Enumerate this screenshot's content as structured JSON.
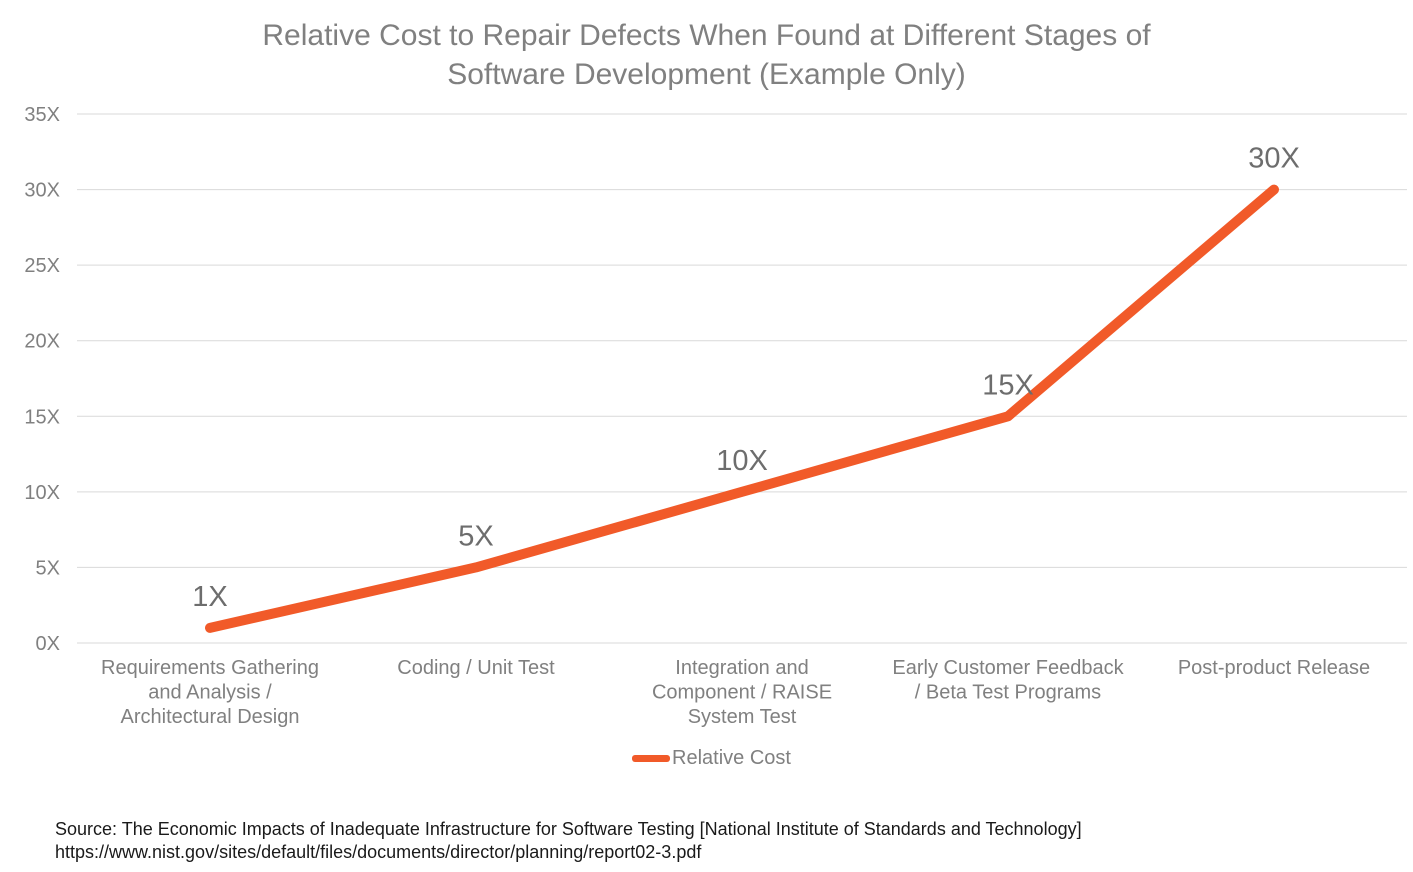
{
  "chart_data": {
    "type": "line",
    "title": "Relative Cost to Repair Defects When Found at Different Stages of Software Development (Example Only)",
    "categories": [
      "Requirements Gathering and Analysis / Architectural Design",
      "Coding / Unit Test",
      "Integration and Component / RAISE System Test",
      "Early Customer Feedback / Beta Test Programs",
      "Post-product Release"
    ],
    "category_label_lines": [
      [
        "Requirements Gathering",
        "and Analysis /",
        "Architectural Design"
      ],
      [
        "Coding / Unit Test"
      ],
      [
        "Integration and",
        "Component / RAISE",
        "System Test"
      ],
      [
        "Early Customer Feedback",
        "/ Beta Test Programs"
      ],
      [
        "Post-product Release"
      ]
    ],
    "series": [
      {
        "name": "Relative Cost",
        "values": [
          1,
          5,
          10,
          15,
          30
        ],
        "data_labels": [
          "1X",
          "5X",
          "10X",
          "15X",
          "30X"
        ],
        "color": "#f15a29"
      }
    ],
    "ylim": [
      0,
      35
    ],
    "yticks": [
      0,
      5,
      10,
      15,
      20,
      25,
      30,
      35
    ],
    "ytick_labels": [
      "0X",
      "5X",
      "10X",
      "15X",
      "20X",
      "25X",
      "30X",
      "35X"
    ],
    "xlabel": "",
    "ylabel": "",
    "grid": true,
    "legend_position": "bottom-center"
  },
  "title_lines": {
    "line1": "Relative Cost to Repair Defects When Found at Different Stages of",
    "line2": "Software Development (Example Only)"
  },
  "legend": {
    "label": "Relative Cost"
  },
  "source": {
    "line1": "Source: The Economic Impacts of Inadequate Infrastructure for Software Testing [National Institute of Standards and Technology]",
    "line2": "https://www.nist.gov/sites/default/files/documents/director/planning/report02-3.pdf"
  },
  "colors": {
    "line": "#f15a29",
    "grid": "#d9d9d9",
    "text": "#808080"
  }
}
